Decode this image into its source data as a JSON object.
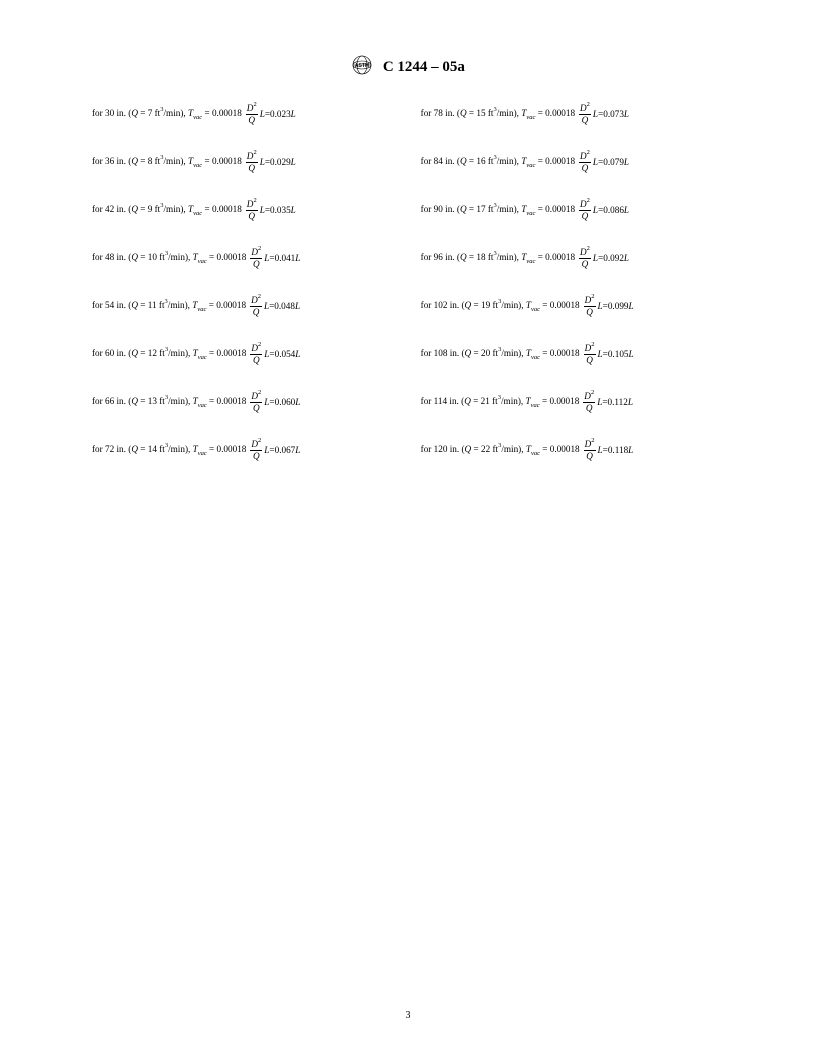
{
  "header": {
    "logo_alt": "ASTM",
    "title": "C 1244 – 05a"
  },
  "page_number": "3",
  "formula": {
    "prefix_for": "for ",
    "in_label": " in. (",
    "q_label": "Q",
    "equals1": " = ",
    "units_ft3min": " ft",
    "units_sup": "3",
    "units_minclose": "/min), ",
    "t_label": "T",
    "t_sub": "vac",
    "equals2": " = ",
    "coef": "0.00018 ",
    "d_label": "D",
    "d_sup": "2",
    "q_den": "Q",
    "l_label": " L",
    "equals3": " = ",
    "l_suffix": " L"
  },
  "column_left": [
    {
      "size": "30",
      "q": "7",
      "q_pad": "  ",
      "result": "0.023"
    },
    {
      "size": "36",
      "q": "8",
      "q_pad": "",
      "result": "0.029"
    },
    {
      "size": "42",
      "q": "9",
      "q_pad": "",
      "result": "0.035"
    },
    {
      "size": "48",
      "q": "10",
      "q_pad": "",
      "result": "0.041"
    },
    {
      "size": "54",
      "q": "11",
      "q_pad": "",
      "result": "0.048"
    },
    {
      "size": "60",
      "q": "12",
      "q_pad": "",
      "result": "0.054"
    },
    {
      "size": "66",
      "q": "13",
      "q_pad": "",
      "result": "0.060"
    },
    {
      "size": "72",
      "q": "14",
      "q_pad": "",
      "result": "0.067"
    }
  ],
  "column_right": [
    {
      "size": "78",
      "q": "15",
      "result": "0.073"
    },
    {
      "size": "84",
      "q": "16",
      "result": "0.079"
    },
    {
      "size": "90",
      "q": "17",
      "result": "0.086"
    },
    {
      "size": "96",
      "q": "18",
      "result": "0.092"
    },
    {
      "size": "102",
      "q": "19",
      "result": "0.099"
    },
    {
      "size": "108",
      "q": "20",
      "result": "0.105"
    },
    {
      "size": "114",
      "q": "21",
      "result": "0.112"
    },
    {
      "size": "120",
      "q": "22",
      "result": "0.118"
    }
  ]
}
